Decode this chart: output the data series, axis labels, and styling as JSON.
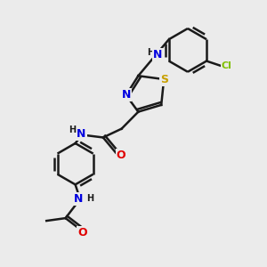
{
  "background_color": "#ebebeb",
  "bond_color": "#1a1a1a",
  "bond_width": 1.8,
  "atom_colors": {
    "N": "#0000e0",
    "O": "#e00000",
    "S": "#c8a000",
    "Cl": "#80c000",
    "C": "#1a1a1a",
    "H": "#1a1a1a"
  },
  "font_size": 8,
  "fig_size": [
    3.0,
    3.0
  ],
  "dpi": 100
}
